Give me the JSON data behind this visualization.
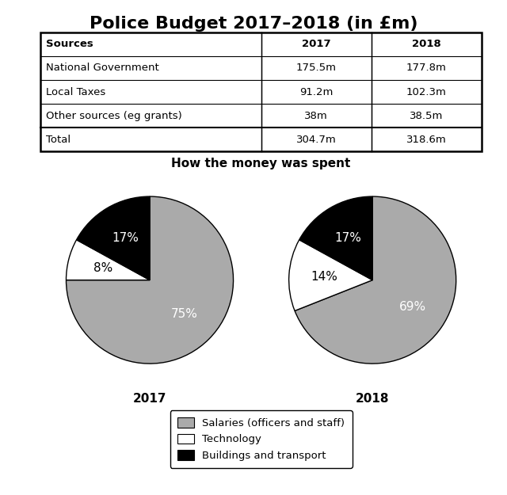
{
  "title": "Police Budget 2017–2018 (in £m)",
  "table": {
    "headers": [
      "Sources",
      "2017",
      "2018"
    ],
    "rows": [
      [
        "National Government",
        "175.5m",
        "177.8m"
      ],
      [
        "Local Taxes",
        "91.2m",
        "102.3m"
      ],
      [
        "Other sources (eg grants)",
        "38m",
        "38.5m"
      ],
      [
        "Total",
        "304.7m",
        "318.6m"
      ]
    ]
  },
  "pie_title": "How the money was spent",
  "pie_2017": {
    "label": "2017",
    "values": [
      75,
      8,
      17
    ],
    "colors": [
      "#aaaaaa",
      "#ffffff",
      "#000000"
    ],
    "labels": [
      "75%",
      "8%",
      "17%"
    ],
    "startangle": 90
  },
  "pie_2018": {
    "label": "2018",
    "values": [
      69,
      14,
      17
    ],
    "colors": [
      "#aaaaaa",
      "#ffffff",
      "#000000"
    ],
    "labels": [
      "69%",
      "14%",
      "17%"
    ],
    "startangle": 90
  },
  "legend_labels": [
    "Salaries (officers and staff)",
    "Technology",
    "Buildings and transport"
  ],
  "legend_colors": [
    "#aaaaaa",
    "#ffffff",
    "#000000"
  ],
  "background_color": "#ffffff",
  "title_fontsize": 16,
  "table_fontsize": 9.5,
  "pie_label_fontsize": 11,
  "pie_year_fontsize": 11,
  "pie_title_fontsize": 11,
  "legend_fontsize": 9.5
}
